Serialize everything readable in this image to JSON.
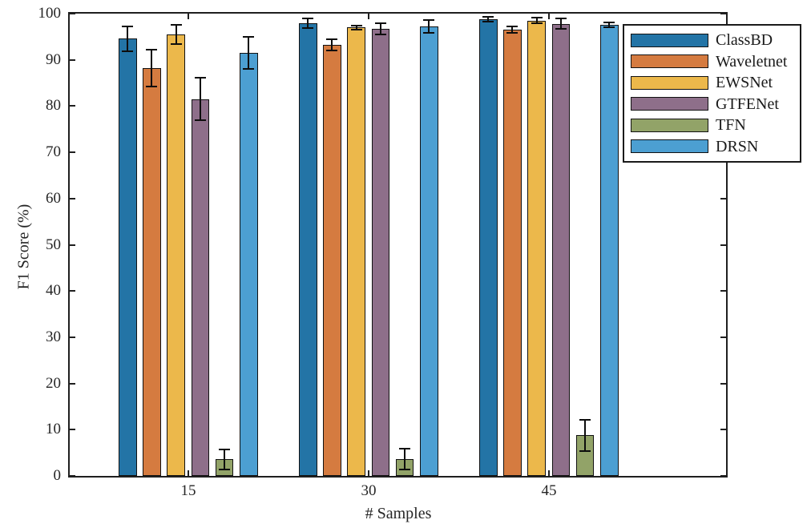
{
  "chart_data": {
    "type": "bar",
    "title": "",
    "xlabel": "# Samples",
    "ylabel": "F1 Score (%)",
    "ylim": [
      0,
      100
    ],
    "yticks": [
      0,
      10,
      20,
      30,
      40,
      50,
      60,
      70,
      80,
      90,
      100
    ],
    "categories": [
      "15",
      "30",
      "45"
    ],
    "grid": false,
    "legend_position": "upper-right",
    "error_bars": true,
    "axis_color": "#1f1f1f",
    "text_color": "#262626",
    "series": [
      {
        "name": "ClassBD",
        "color": "#2374A6",
        "values": [
          94.6,
          97.9,
          98.8
        ],
        "errors": [
          2.7,
          1.0,
          0.5
        ]
      },
      {
        "name": "Waveletnet",
        "color": "#D57B40",
        "values": [
          88.2,
          93.3,
          96.5
        ],
        "errors": [
          4.0,
          1.2,
          0.7
        ]
      },
      {
        "name": "EWSNet",
        "color": "#ECB84B",
        "values": [
          95.5,
          97.0,
          98.5
        ],
        "errors": [
          2.1,
          0.4,
          0.6
        ]
      },
      {
        "name": "GTFENet",
        "color": "#8E6F8A",
        "values": [
          81.5,
          96.7,
          97.8
        ],
        "errors": [
          4.6,
          1.2,
          1.1
        ]
      },
      {
        "name": "TFN",
        "color": "#92A368",
        "values": [
          3.6,
          3.6,
          8.8
        ],
        "errors": [
          2.2,
          2.3,
          3.4
        ]
      },
      {
        "name": "DRSN",
        "color": "#4C9FD2",
        "values": [
          91.5,
          97.2,
          97.6
        ],
        "errors": [
          3.4,
          1.4,
          0.5
        ]
      }
    ]
  }
}
